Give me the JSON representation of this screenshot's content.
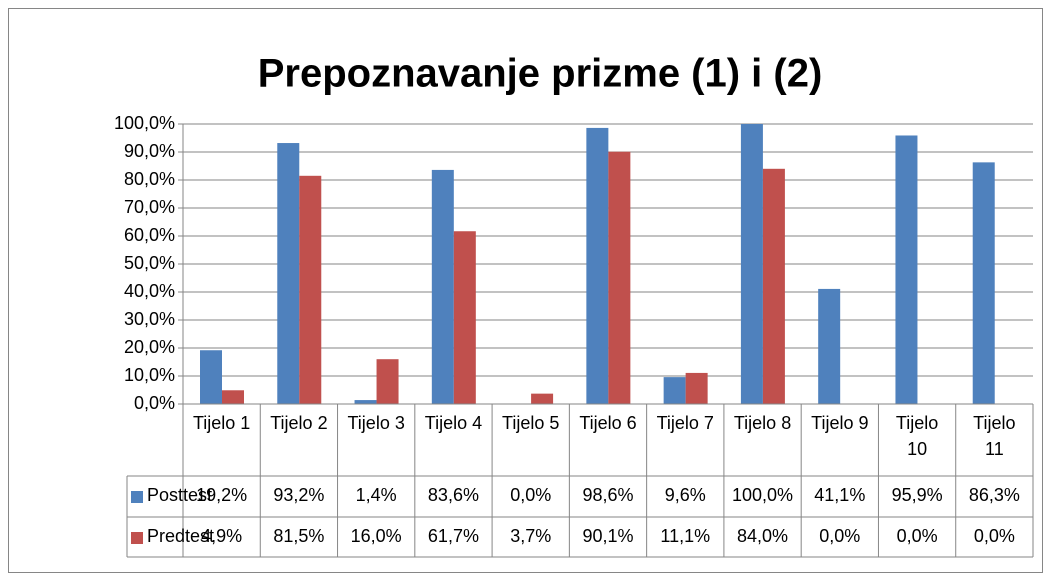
{
  "chart_data": {
    "type": "bar",
    "title": "Prepoznavanje prizme (1) i (2)",
    "categories": [
      "Tijelo 1",
      "Tijelo 2",
      "Tijelo 3",
      "Tijelo 4",
      "Tijelo 5",
      "Tijelo 6",
      "Tijelo 7",
      "Tijelo 8",
      "Tijelo 9",
      "Tijelo 10",
      "Tijelo 11"
    ],
    "series": [
      {
        "name": "Posttest",
        "color": "#4f81bd",
        "values": [
          19.2,
          93.2,
          1.4,
          83.6,
          0,
          98.6,
          9.6,
          100,
          41.1,
          95.9,
          86.3
        ],
        "value_labels": [
          "19,2%",
          "93,2%",
          "1,4%",
          "83,6%",
          "0,0%",
          "98,6%",
          "9,6%",
          "100,0%",
          "41,1%",
          "95,9%",
          "86,3%"
        ]
      },
      {
        "name": "Predtest",
        "color": "#c0504d",
        "values": [
          4.9,
          81.5,
          16,
          61.7,
          3.7,
          90.1,
          11.1,
          84,
          0,
          0,
          0
        ],
        "value_labels": [
          "4,9%",
          "81,5%",
          "16,0%",
          "61,7%",
          "3,7%",
          "90,1%",
          "11,1%",
          "84,0%",
          "0,0%",
          "0,0%",
          "0,0%"
        ]
      }
    ],
    "ylim": [
      0,
      100
    ],
    "yticks": [
      {
        "value": 0,
        "label": "0,0%"
      },
      {
        "value": 10,
        "label": "10,0%"
      },
      {
        "value": 20,
        "label": "20,0%"
      },
      {
        "value": 30,
        "label": "30,0%"
      },
      {
        "value": 40,
        "label": "40,0%"
      },
      {
        "value": 50,
        "label": "50,0%"
      },
      {
        "value": 60,
        "label": "60,0%"
      },
      {
        "value": 70,
        "label": "70,0%"
      },
      {
        "value": 80,
        "label": "80,0%"
      },
      {
        "value": 90,
        "label": "90,0%"
      },
      {
        "value": 100,
        "label": "100,0%"
      }
    ],
    "grid": true
  }
}
